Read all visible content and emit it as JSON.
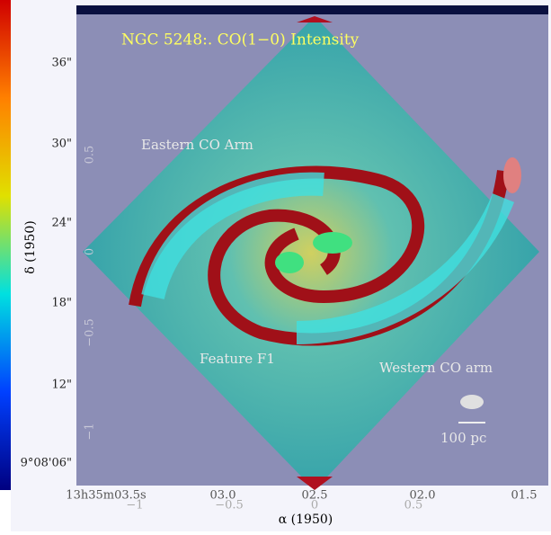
{
  "figure": {
    "title": "NGC 5248:. CO(1−0) Intensity",
    "annotations": [
      "Eastern CO Arm",
      "Feature F1",
      "Western CO arm",
      "100 pc"
    ],
    "x_label": "α (1950)",
    "y_label": "δ (1950)",
    "y_ticks": [
      "36\"",
      "30\"",
      "24\"",
      "18\"",
      "12\"",
      "9°08'06\""
    ],
    "x_ticks": [
      "13h35m03.5s",
      "03.0",
      "02.5",
      "02.0",
      "01.5"
    ],
    "inner_y_ticks": [
      "0.5",
      "0",
      "−0.5",
      "−1"
    ],
    "inner_x_ticks": [
      "−1",
      "−0.5",
      "0",
      "0.5"
    ]
  }
}
